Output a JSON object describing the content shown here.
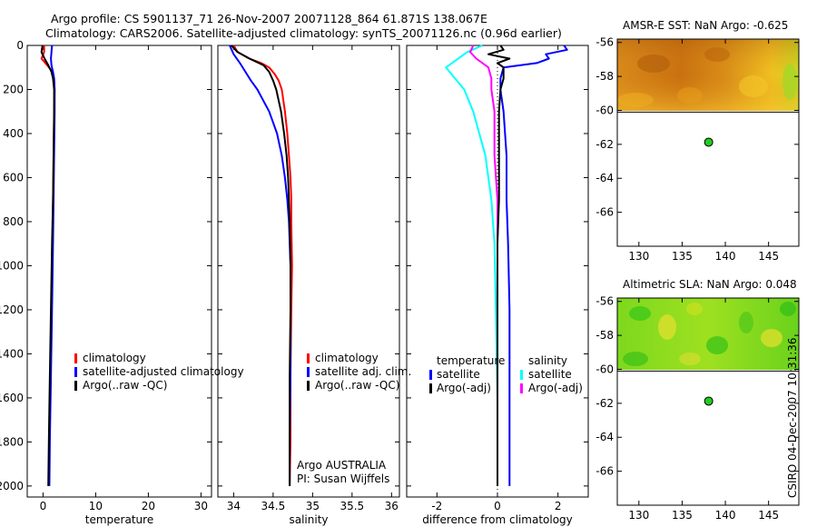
{
  "title_line1": "Argo profile: CS 5901137_71 26-Nov-2007 20071128_864 61.871S 138.067E",
  "title_line2": "Climatology: CARS2006. Satellite-adjusted climatology: synTS_20071126.nc (0.96d earlier)",
  "credit": "CSIRO 04-Dec-2007 10:31:36",
  "colors": {
    "red": "#ff0000",
    "blue": "#0000ff",
    "black": "#000000",
    "cyan": "#00ffff",
    "magenta": "#ff00ff"
  },
  "chart_data": [
    {
      "type": "line",
      "id": "temperature",
      "xlabel": "temperature",
      "ylabel": "",
      "xlim": [
        -3,
        32
      ],
      "ylim": [
        2050,
        0
      ],
      "xticks": [
        0,
        10,
        20,
        30
      ],
      "xtick_labels": [
        "0",
        "10",
        "20",
        "30"
      ],
      "yticks": [
        0,
        200,
        400,
        600,
        800,
        1000,
        1200,
        1400,
        1600,
        1800,
        2000
      ],
      "ytick_labels": [
        "0",
        "200",
        "400",
        "600",
        "800",
        "1000",
        "1200",
        "1400",
        "1600",
        "1800",
        "2000"
      ],
      "legend_items": [
        {
          "label": "climatology",
          "color": "#ff0000"
        },
        {
          "label": "satellite-adjusted climatology",
          "color": "#0000ff"
        },
        {
          "label": "Argo(..raw -QC)",
          "color": "#000000"
        }
      ],
      "series": [
        {
          "color": "#ff0000",
          "depth": [
            0,
            30,
            60,
            90,
            120,
            150,
            200,
            300,
            500,
            700,
            900,
            1200,
            1500,
            1800,
            2000
          ],
          "values": [
            0.2,
            0.2,
            -0.3,
            0.8,
            1.8,
            2.1,
            2.2,
            2.1,
            2.0,
            1.9,
            1.8,
            1.6,
            1.4,
            1.2,
            1.1
          ]
        },
        {
          "color": "#0000ff",
          "depth": [
            0,
            30,
            60,
            90,
            120,
            150,
            200,
            300,
            500,
            700,
            900,
            1200,
            1500,
            1800,
            2000
          ],
          "values": [
            1.7,
            1.6,
            1.5,
            1.6,
            1.9,
            2.1,
            2.2,
            2.2,
            2.1,
            2.0,
            1.9,
            1.7,
            1.5,
            1.3,
            1.2
          ]
        },
        {
          "color": "#000000",
          "depth": [
            0,
            30,
            60,
            90,
            120,
            150,
            200,
            300,
            500,
            700,
            900,
            1200,
            1500,
            1800,
            2000
          ],
          "values": [
            -0.1,
            -0.3,
            0.3,
            1.0,
            1.6,
            1.9,
            2.1,
            2.1,
            2.0,
            1.9,
            1.7,
            1.5,
            1.3,
            1.1,
            1.0
          ]
        }
      ]
    },
    {
      "type": "line",
      "id": "salinity",
      "xlabel": "salinity",
      "ylabel": "",
      "xlim": [
        33.8,
        36.1
      ],
      "ylim": [
        2050,
        0
      ],
      "xticks": [
        34,
        34.5,
        35,
        35.5,
        36
      ],
      "xtick_labels": [
        "34",
        "34.5",
        "35",
        "35.5",
        "36"
      ],
      "yticks": [
        0,
        200,
        400,
        600,
        800,
        1000,
        1200,
        1400,
        1600,
        1800,
        2000
      ],
      "legend_items": [
        {
          "label": "climatology",
          "color": "#ff0000"
        },
        {
          "label": "satellite adj. clim.",
          "color": "#0000ff"
        },
        {
          "label": "Argo(..raw -QC)",
          "color": "#000000"
        }
      ],
      "annotations": [
        "Argo AUSTRALIA",
        "PI: Susan Wijffels"
      ],
      "series": [
        {
          "color": "#ff0000",
          "depth": [
            0,
            30,
            60,
            80,
            100,
            130,
            160,
            200,
            300,
            400,
            500,
            600,
            700,
            800,
            1000,
            1200,
            1500,
            1800,
            2000
          ],
          "values": [
            34.0,
            34.05,
            34.2,
            34.35,
            34.45,
            34.52,
            34.57,
            34.61,
            34.65,
            34.68,
            34.7,
            34.72,
            34.73,
            34.73,
            34.74,
            34.73,
            34.72,
            34.72,
            34.71
          ]
        },
        {
          "color": "#0000ff",
          "depth": [
            0,
            40,
            80,
            120,
            160,
            200,
            300,
            400,
            500,
            600,
            700,
            800,
            1000,
            1200,
            1500,
            1800,
            2000
          ],
          "values": [
            33.95,
            34.0,
            34.08,
            34.15,
            34.22,
            34.3,
            34.45,
            34.55,
            34.61,
            34.65,
            34.68,
            34.7,
            34.72,
            34.72,
            34.72,
            34.71,
            34.71
          ]
        },
        {
          "color": "#000000",
          "depth": [
            0,
            30,
            60,
            90,
            120,
            160,
            200,
            300,
            400,
            500,
            600,
            700,
            800,
            1000,
            1200,
            1500,
            1800,
            2000
          ],
          "values": [
            33.97,
            34.05,
            34.2,
            34.38,
            34.45,
            34.5,
            34.54,
            34.6,
            34.64,
            34.67,
            34.69,
            34.7,
            34.71,
            34.72,
            34.72,
            34.71,
            34.71,
            34.71
          ]
        }
      ]
    },
    {
      "type": "line",
      "id": "difference",
      "xlabel": "difference from climatology",
      "ylabel": "",
      "xlim": [
        -3.0,
        3.0
      ],
      "ylim": [
        2050,
        0
      ],
      "xticks": [
        -2,
        0,
        2
      ],
      "xtick_labels": [
        "-2",
        "0",
        "2"
      ],
      "yticks": [
        0,
        200,
        400,
        600,
        800,
        1000,
        1200,
        1400,
        1600,
        1800,
        2000
      ],
      "legend_headers": [
        "temperature",
        "salinity"
      ],
      "legend_items_left": [
        {
          "label": "satellite",
          "color": "#0000ff"
        },
        {
          "label": "Argo(-adj)",
          "color": "#000000"
        }
      ],
      "legend_items_right": [
        {
          "label": "satellite",
          "color": "#00ffff"
        },
        {
          "label": "Argo(-adj)",
          "color": "#ff00ff"
        }
      ],
      "series": [
        {
          "color": "#0000ff",
          "depth": [
            0,
            20,
            40,
            60,
            80,
            100,
            150,
            200,
            300,
            500,
            700,
            900,
            1200,
            1600,
            2000
          ],
          "values": [
            2.2,
            2.3,
            1.6,
            1.7,
            1.3,
            0.2,
            0.1,
            0.1,
            0.2,
            0.3,
            0.3,
            0.35,
            0.4,
            0.4,
            0.4
          ]
        },
        {
          "color": "#00ffff",
          "depth": [
            0,
            30,
            60,
            100,
            150,
            200,
            300,
            500,
            700,
            900,
            1200,
            1600,
            2000
          ],
          "values": [
            -0.5,
            -1.0,
            -1.3,
            -1.7,
            -1.4,
            -1.1,
            -0.8,
            -0.4,
            -0.2,
            -0.1,
            -0.05,
            0.0,
            0.0
          ]
        },
        {
          "color": "#ff00ff",
          "depth": [
            0,
            30,
            60,
            100,
            150,
            200,
            300,
            500,
            700,
            900,
            1200,
            1600,
            2000
          ],
          "values": [
            -0.8,
            -0.9,
            -0.7,
            -0.3,
            -0.2,
            -0.2,
            -0.1,
            -0.1,
            0.0,
            0.0,
            0.0,
            0.0,
            0.0
          ]
        },
        {
          "color": "#000000",
          "depth": [
            0,
            20,
            40,
            60,
            80,
            100,
            150,
            200,
            300,
            500,
            700,
            900,
            1200,
            1600,
            2000
          ],
          "values": [
            0.1,
            0.2,
            -0.3,
            0.4,
            0.0,
            0.2,
            0.2,
            0.1,
            0.05,
            0.05,
            0.05,
            0.0,
            0.0,
            0.0,
            0.0
          ]
        }
      ]
    },
    {
      "type": "heatmap",
      "id": "sst_map",
      "title": "AMSR-E SST: NaN Argo: -0.625",
      "xlim": [
        127.5,
        148.5
      ],
      "ylim": [
        -68.0,
        -55.8
      ],
      "xticks": [
        130,
        135,
        140,
        145
      ],
      "yticks": [
        -56,
        -58,
        -60,
        -62,
        -64,
        -66
      ],
      "data_lat_range": [
        -60.1,
        -55.8
      ],
      "float_position": {
        "lon": 138.067,
        "lat": -61.871
      }
    },
    {
      "type": "heatmap",
      "id": "sla_map",
      "title": "Altimetric SLA: NaN Argo: 0.048",
      "xlim": [
        127.5,
        148.5
      ],
      "ylim": [
        -68.0,
        -55.8
      ],
      "xticks": [
        130,
        135,
        140,
        145
      ],
      "yticks": [
        -56,
        -58,
        -60,
        -62,
        -64,
        -66
      ],
      "data_lat_range": [
        -60.1,
        -55.8
      ],
      "float_position": {
        "lon": 138.067,
        "lat": -61.871
      }
    }
  ]
}
